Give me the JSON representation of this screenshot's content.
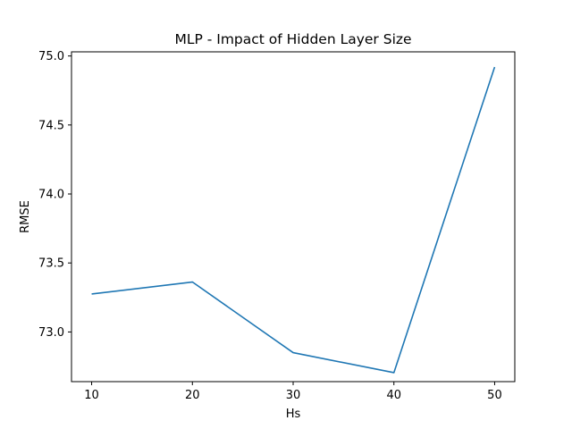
{
  "chart_data": {
    "type": "line",
    "title": "MLP - Impact of Hidden Layer Size",
    "xlabel": "Hs",
    "ylabel": "RMSE",
    "x": [
      10,
      20,
      30,
      40,
      50
    ],
    "series": [
      {
        "values": [
          73.275,
          73.362,
          72.85,
          72.705,
          74.92
        ],
        "color": "#1f77b4"
      }
    ],
    "xlim": [
      8,
      52
    ],
    "ylim": [
      72.64,
      75.03
    ],
    "xticks": [
      10,
      20,
      30,
      40,
      50
    ],
    "xtick_labels": [
      "10",
      "20",
      "30",
      "40",
      "50"
    ],
    "yticks": [
      73.0,
      73.5,
      74.0,
      74.5,
      75.0
    ],
    "ytick_labels": [
      "73.0",
      "73.5",
      "74.0",
      "74.5",
      "75.0"
    ],
    "grid": false,
    "legend": "none"
  }
}
